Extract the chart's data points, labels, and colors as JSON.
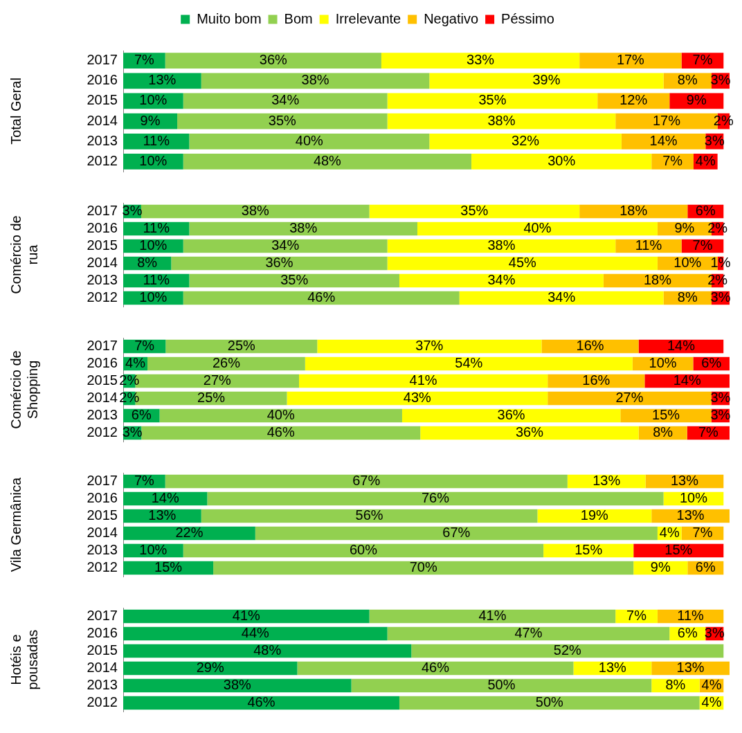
{
  "chart_data": [
    {
      "type": "bar",
      "orientation": "horizontal",
      "stacked": true,
      "ylabel": "Total Geral",
      "legend": "top",
      "tick_labels": "y",
      "grid": false,
      "categories": [
        "2017",
        "2016",
        "2015",
        "2014",
        "2013",
        "2012"
      ],
      "series": [
        {
          "name": "Muito bom",
          "color": "#00b050",
          "values": [
            7,
            13,
            10,
            9,
            11,
            10
          ],
          "value_labels": [
            "7%",
            "13%",
            "10%",
            "9%",
            "11%",
            "10%"
          ]
        },
        {
          "name": "Bom",
          "color": "#92d050",
          "values": [
            36,
            38,
            34,
            35,
            40,
            48
          ],
          "value_labels": [
            "36%",
            "38%",
            "34%",
            "35%",
            "40%",
            "48%"
          ]
        },
        {
          "name": "Irrelevante",
          "color": "#ffff00",
          "values": [
            33,
            39,
            35,
            38,
            32,
            30
          ],
          "value_labels": [
            "33%",
            "39%",
            "35%",
            "38%",
            "32%",
            "30%"
          ]
        },
        {
          "name": "Negativo",
          "color": "#ffc000",
          "values": [
            17,
            8,
            12,
            17,
            14,
            7
          ],
          "value_labels": [
            "17%",
            "8%",
            "12%",
            "17%",
            "14%",
            "7%"
          ]
        },
        {
          "name": "Péssimo",
          "color": "#ff0000",
          "values": [
            7,
            3,
            9,
            2,
            3,
            4
          ],
          "value_labels": [
            "7%",
            "3%",
            "9%",
            "2%",
            "3%",
            "4%"
          ]
        }
      ]
    },
    {
      "type": "bar",
      "orientation": "horizontal",
      "stacked": true,
      "ylabel": "Comércio de rua",
      "tick_labels": "y",
      "grid": false,
      "categories": [
        "2017",
        "2016",
        "2015",
        "2014",
        "2013",
        "2012"
      ],
      "series": [
        {
          "color": "#00b050",
          "values": [
            3,
            11,
            10,
            8,
            11,
            10
          ],
          "value_labels": [
            "3%",
            "11%",
            "10%",
            "8%",
            "11%",
            "10%"
          ]
        },
        {
          "color": "#92d050",
          "values": [
            38,
            38,
            34,
            36,
            35,
            46
          ],
          "value_labels": [
            "38%",
            "38%",
            "34%",
            "36%",
            "35%",
            "46%"
          ]
        },
        {
          "color": "#ffff00",
          "values": [
            35,
            40,
            38,
            45,
            34,
            34
          ],
          "value_labels": [
            "35%",
            "40%",
            "38%",
            "45%",
            "34%",
            "34%"
          ]
        },
        {
          "color": "#ffc000",
          "values": [
            18,
            9,
            11,
            10,
            18,
            8
          ],
          "value_labels": [
            "18%",
            "9%",
            "11%",
            "10%",
            "18%",
            "8%"
          ]
        },
        {
          "color": "#ff0000",
          "values": [
            6,
            2,
            7,
            1,
            2,
            3
          ],
          "value_labels": [
            "6%",
            "2%",
            "7%",
            "1%",
            "2%",
            "3%"
          ]
        }
      ]
    },
    {
      "type": "bar",
      "orientation": "horizontal",
      "stacked": true,
      "ylabel": "Comércio de Shopping",
      "tick_labels": "y",
      "grid": false,
      "categories": [
        "2017",
        "2016",
        "2015",
        "2014",
        "2013",
        "2012"
      ],
      "series": [
        {
          "color": "#00b050",
          "values": [
            7,
            4,
            2,
            2,
            6,
            3
          ],
          "value_labels": [
            "7%",
            "4%",
            "2%",
            "2%",
            "6%",
            "3%"
          ]
        },
        {
          "color": "#92d050",
          "values": [
            25,
            26,
            27,
            25,
            40,
            46
          ],
          "value_labels": [
            "25%",
            "26%",
            "27%",
            "25%",
            "40%",
            "46%"
          ]
        },
        {
          "color": "#ffff00",
          "values": [
            37,
            54,
            41,
            43,
            36,
            36
          ],
          "value_labels": [
            "37%",
            "54%",
            "41%",
            "43%",
            "36%",
            "36%"
          ]
        },
        {
          "color": "#ffc000",
          "values": [
            16,
            10,
            16,
            27,
            15,
            8
          ],
          "value_labels": [
            "16%",
            "10%",
            "16%",
            "27%",
            "15%",
            "8%"
          ]
        },
        {
          "color": "#ff0000",
          "values": [
            14,
            6,
            14,
            3,
            3,
            7
          ],
          "value_labels": [
            "14%",
            "6%",
            "14%",
            "3%",
            "3%",
            "7%"
          ]
        }
      ]
    },
    {
      "type": "bar",
      "orientation": "horizontal",
      "stacked": true,
      "ylabel": "Vila Germânica",
      "tick_labels": "y",
      "grid": false,
      "categories": [
        "2017",
        "2016",
        "2015",
        "2014",
        "2013",
        "2012"
      ],
      "series": [
        {
          "color": "#00b050",
          "values": [
            7,
            14,
            13,
            22,
            10,
            15
          ],
          "value_labels": [
            "7%",
            "14%",
            "13%",
            "22%",
            "10%",
            "15%"
          ]
        },
        {
          "color": "#92d050",
          "values": [
            67,
            76,
            56,
            67,
            60,
            70
          ],
          "value_labels": [
            "67%",
            "76%",
            "56%",
            "67%",
            "60%",
            "70%"
          ]
        },
        {
          "color": "#ffff00",
          "values": [
            13,
            10,
            19,
            4,
            15,
            9
          ],
          "value_labels": [
            "13%",
            "10%",
            "19%",
            "4%",
            "15%",
            "9%"
          ]
        },
        {
          "color": "#ffc000",
          "values": [
            13,
            null,
            13,
            7,
            null,
            6
          ],
          "value_labels": [
            "13%",
            null,
            "13%",
            "7%",
            null,
            "6%"
          ]
        },
        {
          "color": "#ff0000",
          "values": [
            null,
            null,
            null,
            null,
            15,
            null
          ],
          "value_labels": [
            null,
            null,
            null,
            null,
            "15%",
            null
          ]
        }
      ]
    },
    {
      "type": "bar",
      "orientation": "horizontal",
      "stacked": true,
      "ylabel": "Hotéis e pousadas",
      "tick_labels": "y",
      "grid": false,
      "categories": [
        "2017",
        "2016",
        "2015",
        "2014",
        "2013",
        "2012"
      ],
      "series": [
        {
          "color": "#00b050",
          "values": [
            41,
            44,
            48,
            29,
            38,
            46
          ],
          "value_labels": [
            "41%",
            "44%",
            "48%",
            "29%",
            "38%",
            "46%"
          ]
        },
        {
          "color": "#92d050",
          "values": [
            41,
            47,
            52,
            46,
            50,
            50
          ],
          "value_labels": [
            "41%",
            "47%",
            "52%",
            "46%",
            "50%",
            "50%"
          ]
        },
        {
          "color": "#ffff00",
          "values": [
            7,
            6,
            null,
            13,
            8,
            4
          ],
          "value_labels": [
            "7%",
            "6%",
            null,
            "13%",
            "8%",
            "4%"
          ]
        },
        {
          "color": "#ffc000",
          "values": [
            11,
            null,
            null,
            13,
            4,
            null
          ],
          "value_labels": [
            "11%",
            null,
            null,
            "13%",
            "4%",
            null
          ]
        },
        {
          "color": "#ff0000",
          "values": [
            null,
            3,
            null,
            null,
            null,
            null
          ],
          "value_labels": [
            null,
            "3%",
            null,
            null,
            null,
            null
          ]
        }
      ]
    }
  ]
}
